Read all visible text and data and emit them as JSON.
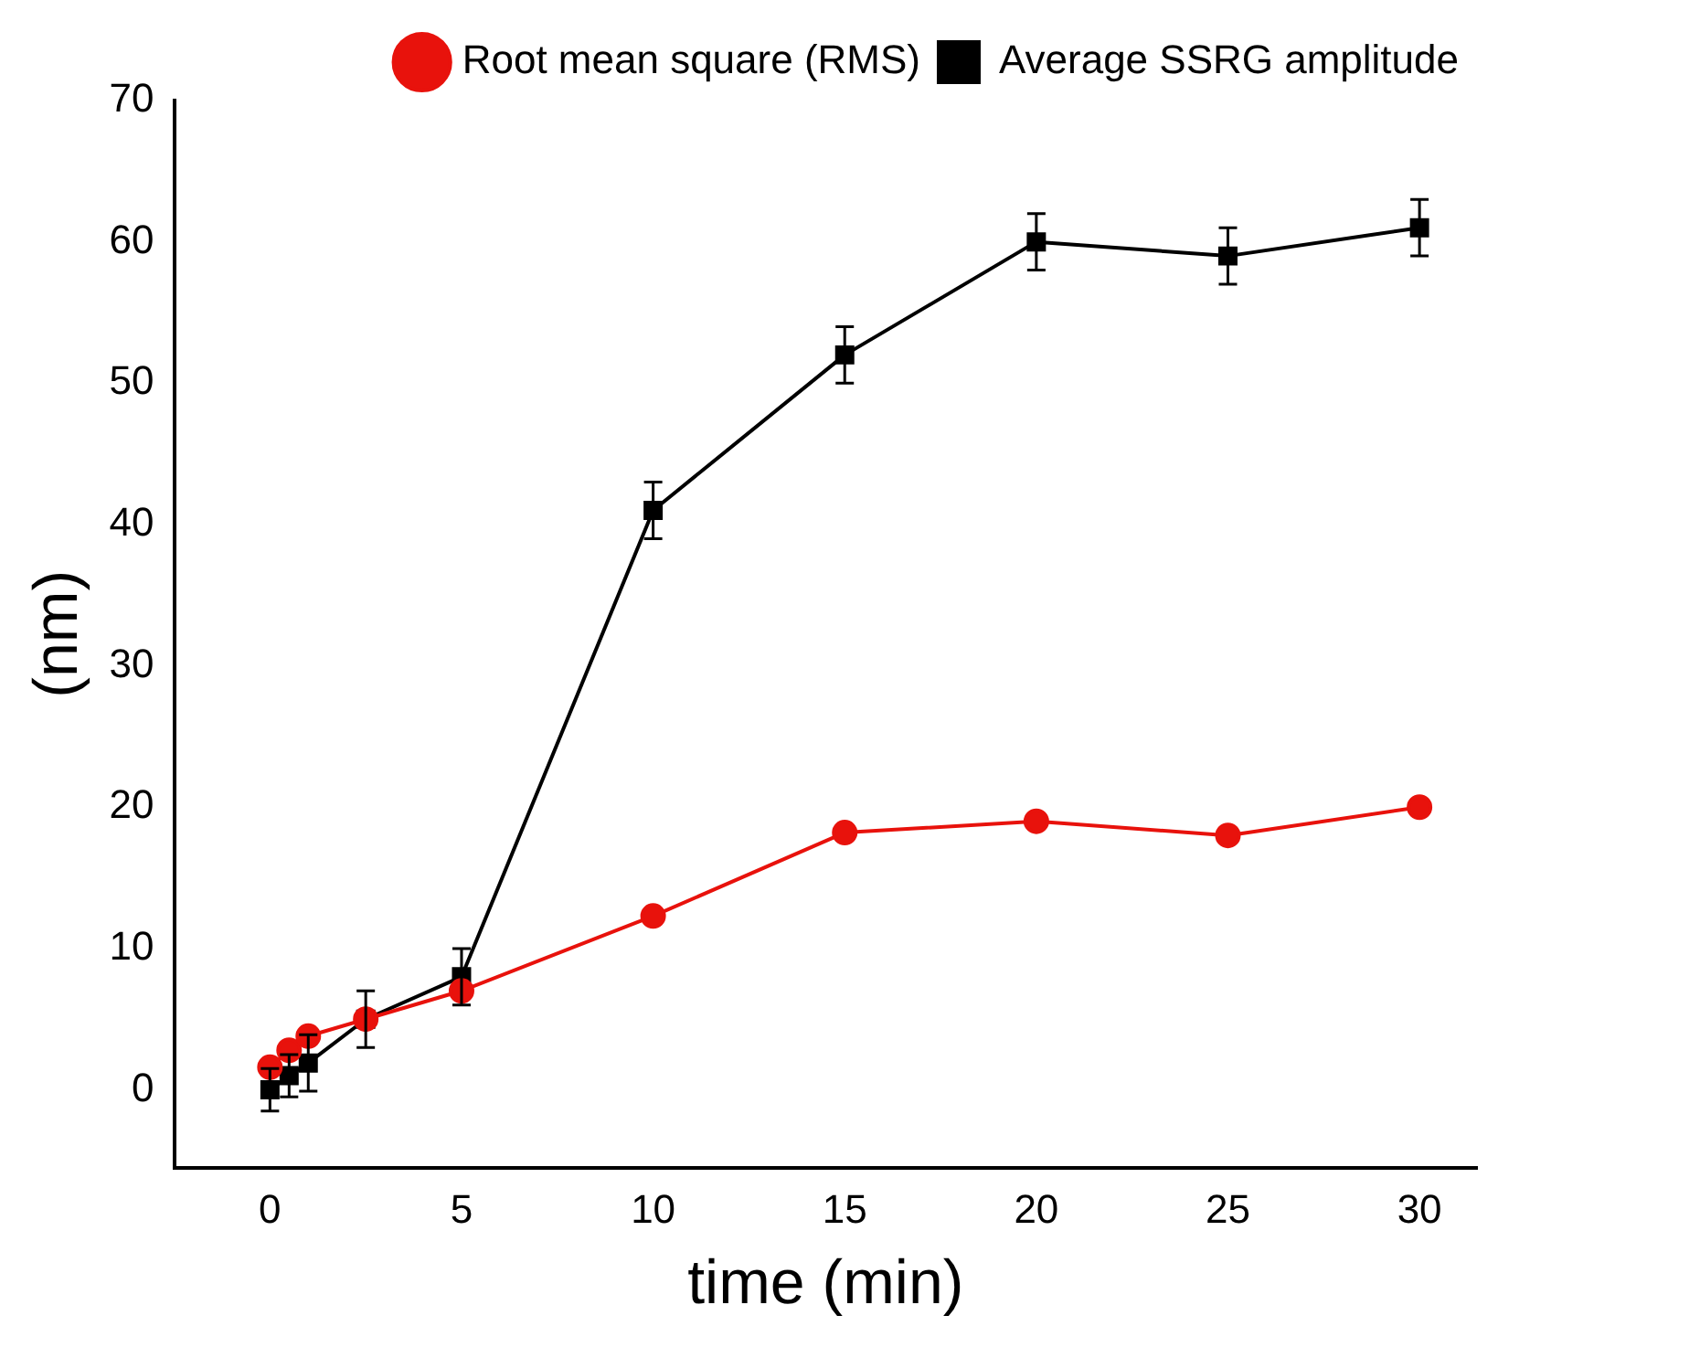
{
  "chart_data": {
    "type": "line",
    "xlabel": "time (min)",
    "ylabel": "(nm)",
    "xlim": [
      -2.5,
      31.5
    ],
    "ylim": [
      -5.5,
      70
    ],
    "xticks": [
      0,
      5,
      10,
      15,
      20,
      25,
      30
    ],
    "yticks": [
      0,
      10,
      20,
      30,
      40,
      50,
      60,
      70
    ],
    "grid": false,
    "legend": "top right",
    "x": [
      0,
      0.5,
      1,
      2.5,
      5,
      10,
      15,
      20,
      25,
      30
    ],
    "series": [
      {
        "name": "Average SSRG amplitude",
        "color": "#000000",
        "marker": "square",
        "values": [
          0,
          1,
          1.9,
          5,
          8,
          41,
          52,
          60,
          59,
          61
        ],
        "errors": [
          1.5,
          1.5,
          2,
          2,
          2,
          2,
          2,
          2,
          2,
          2
        ]
      },
      {
        "name": "Root mean square (RMS)",
        "color": "#e8120c",
        "marker": "circle",
        "values": [
          1.6,
          2.8,
          3.8,
          5,
          7,
          12.3,
          18.2,
          19,
          18,
          20
        ]
      }
    ]
  }
}
